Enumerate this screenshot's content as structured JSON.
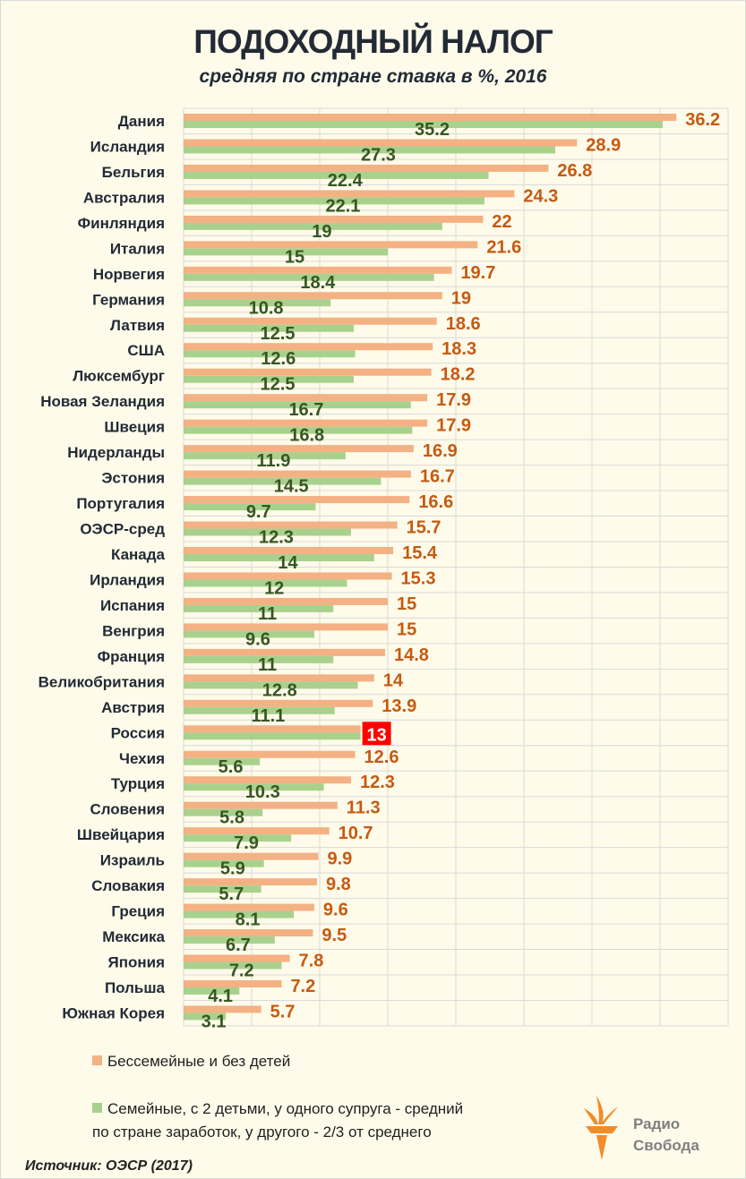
{
  "chart_data": {
    "type": "bar",
    "orientation": "horizontal",
    "title": "ПОДОХОДНЫЙ НАЛОГ",
    "subtitle": "средняя по стране ставка в %, 2016",
    "xlabel": "",
    "ylabel": "",
    "xlim": [
      0,
      40
    ],
    "grid": true,
    "legend_position": "bottom",
    "categories": [
      "Дания",
      "Исландия",
      "Бельгия",
      "Австралия",
      "Финляндия",
      "Италия",
      "Норвегия",
      "Германия",
      "Латвия",
      "США",
      "Люксембург",
      "Новая Зеландия",
      "Швеция",
      "Нидерланды",
      "Эстония",
      "Португалия",
      "ОЭСР-сред",
      "Канада",
      "Ирландия",
      "Испания",
      "Венгрия",
      "Франция",
      "Великобритания",
      "Австрия",
      "Россия",
      "Чехия",
      "Турция",
      "Словения",
      "Швейцария",
      "Израиль",
      "Словакия",
      "Греция",
      "Мексика",
      "Япония",
      "Польша",
      "Южная Корея"
    ],
    "series": [
      {
        "name": "Бессемейные и без детей",
        "color": "#f4b183",
        "label_color": "#c55a11",
        "values": [
          36.2,
          28.9,
          26.8,
          24.3,
          22,
          21.6,
          19.7,
          19,
          18.6,
          18.3,
          18.2,
          17.9,
          17.9,
          16.9,
          16.7,
          16.6,
          15.7,
          15.4,
          15.3,
          15,
          15,
          14.8,
          14,
          13.9,
          13,
          12.6,
          12.3,
          11.3,
          10.7,
          9.9,
          9.8,
          9.6,
          9.5,
          7.8,
          7.2,
          5.7
        ]
      },
      {
        "name": "Семейные, с 2 детьми, у одного супруга - средний по стране заработок, у другого - 2/3 от среднего",
        "color": "#a9d18e",
        "label_color": "#375623",
        "values": [
          35.2,
          27.3,
          22.4,
          22.1,
          19,
          15,
          18.4,
          10.8,
          12.5,
          12.6,
          12.5,
          16.7,
          16.8,
          11.9,
          14.5,
          9.7,
          12.3,
          14,
          12,
          11,
          9.6,
          11,
          12.8,
          11.1,
          13,
          5.6,
          10.3,
          5.8,
          7.9,
          5.9,
          5.7,
          8.1,
          6.7,
          7.2,
          4.1,
          3.1
        ]
      }
    ],
    "annotations": [
      {
        "category": "Россия",
        "text": "13",
        "style": "highlight-red"
      }
    ]
  },
  "legend": {
    "single": "Бессемейные и без детей",
    "family_line1": "Семейные, с 2 детьми, у одного супруга - средний",
    "family_line2": "по стране заработок, у другого - 2/3 от среднего"
  },
  "source": "Источник: ОЭСР (2017)",
  "logo": {
    "line1": "Радио",
    "line2": "Свобода",
    "color": "#f28c28"
  }
}
